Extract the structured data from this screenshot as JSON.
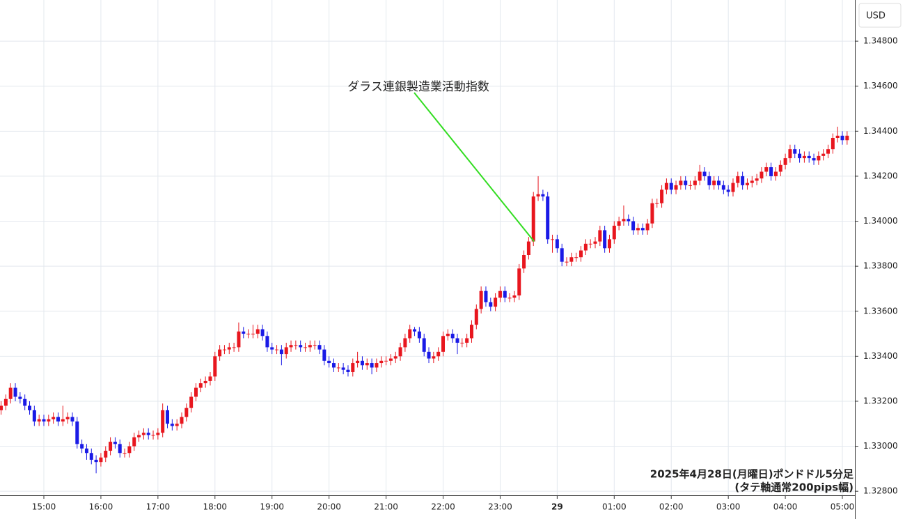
{
  "chart_data": {
    "type": "candlestick",
    "currency": "USD",
    "annotation": "ダラス連銀製造業活動指数",
    "footer": [
      "2025年4月28日(月曜日)ポンドドル5分足",
      "(タテ軸通常200pips幅)"
    ],
    "up_color": "#e8161e",
    "down_color": "#1a1ae6",
    "annotation_color": "#33dd22",
    "grid": true,
    "ylim": [
      1.32782,
      1.34983
    ],
    "yticks": [
      {
        "value": 1.348,
        "label": "1.34800"
      },
      {
        "value": 1.346,
        "label": "1.34600"
      },
      {
        "value": 1.344,
        "label": "1.34400"
      },
      {
        "value": 1.342,
        "label": "1.34200"
      },
      {
        "value": 1.34,
        "label": "1.34000"
      },
      {
        "value": 1.338,
        "label": "1.33800"
      },
      {
        "value": 1.336,
        "label": "1.33600"
      },
      {
        "value": 1.334,
        "label": "1.33400"
      },
      {
        "value": 1.332,
        "label": "1.33200"
      },
      {
        "value": 1.33,
        "label": "1.33000"
      },
      {
        "value": 1.328,
        "label": "1.32800"
      }
    ],
    "categories": [
      null,
      null,
      null,
      null,
      null,
      null,
      null,
      null,
      null,
      "15:00",
      null,
      null,
      null,
      null,
      null,
      null,
      null,
      null,
      null,
      null,
      null,
      "16:00",
      null,
      null,
      null,
      null,
      null,
      null,
      null,
      null,
      null,
      null,
      null,
      "17:00",
      null,
      null,
      null,
      null,
      null,
      null,
      null,
      null,
      null,
      null,
      null,
      "18:00",
      null,
      null,
      null,
      null,
      null,
      null,
      null,
      null,
      null,
      null,
      null,
      "19:00",
      null,
      null,
      null,
      null,
      null,
      null,
      null,
      null,
      null,
      null,
      null,
      "20:00",
      null,
      null,
      null,
      null,
      null,
      null,
      null,
      null,
      null,
      null,
      null,
      "21:00",
      null,
      null,
      null,
      null,
      null,
      null,
      null,
      null,
      null,
      null,
      null,
      "22:00",
      null,
      null,
      null,
      null,
      null,
      null,
      null,
      null,
      null,
      null,
      null,
      "23:00",
      null,
      null,
      null,
      null,
      null,
      null,
      null,
      null,
      null,
      null,
      null,
      "29",
      null,
      null,
      null,
      null,
      null,
      null,
      null,
      null,
      null,
      null,
      null,
      "01:00",
      null,
      null,
      null,
      null,
      null,
      null,
      null,
      null,
      null,
      null,
      null,
      "02:00",
      null,
      null,
      null,
      null,
      null,
      null,
      null,
      null,
      null,
      null,
      null,
      "03:00",
      null,
      null,
      null,
      null,
      null,
      null,
      null,
      null,
      null,
      null,
      null,
      "04:00",
      null,
      null,
      null,
      null,
      null,
      null,
      null,
      null,
      null,
      null,
      null,
      "05:00",
      null
    ],
    "open": [
      1.3316,
      1.3318,
      1.3321,
      1.3326,
      1.3322,
      1.3321,
      1.3318,
      1.3316,
      1.3311,
      1.3312,
      1.3311,
      1.3312,
      1.3313,
      1.3311,
      1.3312,
      1.3313,
      1.3311,
      1.3301,
      1.3299,
      1.3297,
      1.3294,
      1.3293,
      1.3295,
      1.3298,
      1.3302,
      1.3301,
      1.3297,
      1.3297,
      1.33,
      1.3304,
      1.3305,
      1.3306,
      1.3305,
      1.3305,
      1.3306,
      1.3316,
      1.331,
      1.3309,
      1.331,
      1.3313,
      1.3317,
      1.3322,
      1.3326,
      1.3328,
      1.3329,
      1.3331,
      1.334,
      1.3343,
      1.3343,
      1.3344,
      1.3344,
      1.3351,
      1.335,
      1.335,
      1.335,
      1.3352,
      1.3349,
      1.3344,
      1.3343,
      1.3343,
      1.3341,
      1.3344,
      1.3345,
      1.3345,
      1.3344,
      1.3344,
      1.3345,
      1.3345,
      1.3343,
      1.3338,
      1.3337,
      1.3335,
      1.3335,
      1.3334,
      1.3333,
      1.3337,
      1.3338,
      1.3336,
      1.3337,
      1.3335,
      1.3337,
      1.3338,
      1.3338,
      1.3339,
      1.334,
      1.3344,
      1.3348,
      1.3352,
      1.3351,
      1.3348,
      1.3342,
      1.3339,
      1.334,
      1.3342,
      1.3349,
      1.335,
      1.3348,
      1.3346,
      1.3346,
      1.3348,
      1.3354,
      1.3361,
      1.3369,
      1.3364,
      1.3362,
      1.3366,
      1.3369,
      1.3366,
      1.3366,
      1.3367,
      1.3379,
      1.3385,
      1.3391,
      1.3411,
      1.3412,
      1.3411,
      1.3392,
      1.3392,
      1.3388,
      1.3382,
      1.3382,
      1.3384,
      1.3384,
      1.3387,
      1.339,
      1.339,
      1.3391,
      1.3396,
      1.3388,
      1.3392,
      1.3398,
      1.34,
      1.3401,
      1.34,
      1.3396,
      1.3397,
      1.3396,
      1.3399,
      1.3408,
      1.3408,
      1.3414,
      1.3417,
      1.3414,
      1.3416,
      1.3418,
      1.3416,
      1.3416,
      1.3418,
      1.3422,
      1.342,
      1.3416,
      1.3418,
      1.3416,
      1.3414,
      1.3413,
      1.3417,
      1.342,
      1.3416,
      1.3417,
      1.3418,
      1.3419,
      1.3422,
      1.3424,
      1.342,
      1.3422,
      1.3425,
      1.3428,
      1.3432,
      1.343,
      1.3428,
      1.3429,
      1.3428,
      1.3427,
      1.3429,
      1.343,
      1.3432,
      1.3437,
      1.3438,
      1.3436
    ],
    "high": [
      1.332,
      1.3323,
      1.3328,
      1.3328,
      1.3324,
      1.3323,
      1.332,
      1.3318,
      1.3314,
      1.3314,
      1.3314,
      1.3315,
      1.3315,
      1.3318,
      1.3315,
      1.3315,
      1.3313,
      1.3303,
      1.3301,
      1.3299,
      1.3296,
      1.3297,
      1.33,
      1.3304,
      1.3304,
      1.3303,
      1.3299,
      1.3302,
      1.3306,
      1.3307,
      1.3308,
      1.3308,
      1.3307,
      1.3308,
      1.3319,
      1.3318,
      1.3312,
      1.3312,
      1.3315,
      1.3319,
      1.3324,
      1.3328,
      1.333,
      1.3331,
      1.3333,
      1.3342,
      1.3345,
      1.3345,
      1.3346,
      1.3346,
      1.3355,
      1.3353,
      1.3352,
      1.3354,
      1.3354,
      1.3354,
      1.3351,
      1.3346,
      1.3345,
      1.3345,
      1.3346,
      1.3347,
      1.3347,
      1.3347,
      1.3346,
      1.3347,
      1.3347,
      1.3347,
      1.3345,
      1.334,
      1.3339,
      1.3337,
      1.3337,
      1.3336,
      1.3339,
      1.3342,
      1.334,
      1.3339,
      1.3339,
      1.3339,
      1.334,
      1.334,
      1.3341,
      1.3342,
      1.3346,
      1.335,
      1.3354,
      1.3353,
      1.3353,
      1.335,
      1.3344,
      1.3342,
      1.3344,
      1.3351,
      1.3352,
      1.3352,
      1.335,
      1.3348,
      1.335,
      1.3356,
      1.3363,
      1.3371,
      1.3371,
      1.3366,
      1.3368,
      1.3371,
      1.3371,
      1.3368,
      1.3369,
      1.3381,
      1.3387,
      1.3393,
      1.3413,
      1.342,
      1.3414,
      1.3413,
      1.3394,
      1.3394,
      1.339,
      1.3384,
      1.3386,
      1.3386,
      1.3389,
      1.3392,
      1.3392,
      1.3393,
      1.3398,
      1.3398,
      1.3394,
      1.34,
      1.3402,
      1.3407,
      1.3403,
      1.3402,
      1.3399,
      1.3399,
      1.3401,
      1.341,
      1.341,
      1.3416,
      1.3419,
      1.3419,
      1.3418,
      1.342,
      1.342,
      1.3418,
      1.342,
      1.3425,
      1.3424,
      1.3422,
      1.342,
      1.342,
      1.3418,
      1.3416,
      1.3419,
      1.3422,
      1.3422,
      1.3419,
      1.342,
      1.3421,
      1.3424,
      1.3426,
      1.3426,
      1.3424,
      1.3427,
      1.343,
      1.3434,
      1.3434,
      1.3432,
      1.3431,
      1.3431,
      1.343,
      1.3431,
      1.3432,
      1.3434,
      1.3439,
      1.3442,
      1.344,
      1.344
    ],
    "low": [
      1.3314,
      1.3316,
      1.3319,
      1.332,
      1.3319,
      1.3316,
      1.3314,
      1.3309,
      1.3309,
      1.3309,
      1.3309,
      1.331,
      1.3309,
      1.3309,
      1.331,
      1.3309,
      1.3299,
      1.3297,
      1.3294,
      1.3292,
      1.3288,
      1.3291,
      1.3293,
      1.3296,
      1.3299,
      1.3295,
      1.3295,
      1.3295,
      1.3298,
      1.3302,
      1.3303,
      1.3303,
      1.3303,
      1.3303,
      1.3304,
      1.3308,
      1.3307,
      1.3307,
      1.3308,
      1.3311,
      1.3315,
      1.332,
      1.3324,
      1.3326,
      1.3327,
      1.3329,
      1.3338,
      1.3341,
      1.3341,
      1.3342,
      1.3342,
      1.3348,
      1.3348,
      1.3348,
      1.3348,
      1.3347,
      1.3342,
      1.3341,
      1.3341,
      1.3336,
      1.3339,
      1.3342,
      1.3343,
      1.3342,
      1.3342,
      1.3342,
      1.3343,
      1.3341,
      1.3336,
      1.3335,
      1.3333,
      1.3333,
      1.3332,
      1.3331,
      1.3331,
      1.3335,
      1.3334,
      1.3334,
      1.3332,
      1.3333,
      1.3335,
      1.3336,
      1.3336,
      1.3337,
      1.3338,
      1.3342,
      1.3346,
      1.3349,
      1.3346,
      1.334,
      1.3337,
      1.3337,
      1.3338,
      1.334,
      1.3347,
      1.3346,
      1.3341,
      1.3344,
      1.3344,
      1.3346,
      1.3352,
      1.3359,
      1.3362,
      1.336,
      1.336,
      1.3364,
      1.3364,
      1.3364,
      1.3364,
      1.3365,
      1.3377,
      1.3383,
      1.3389,
      1.3409,
      1.3409,
      1.339,
      1.3386,
      1.3386,
      1.338,
      1.338,
      1.338,
      1.3382,
      1.3382,
      1.3385,
      1.3388,
      1.3388,
      1.3389,
      1.3386,
      1.3386,
      1.339,
      1.3396,
      1.3398,
      1.3398,
      1.3394,
      1.3394,
      1.3394,
      1.3394,
      1.3397,
      1.3406,
      1.3406,
      1.3412,
      1.3412,
      1.3412,
      1.3414,
      1.3414,
      1.3414,
      1.3414,
      1.3416,
      1.3418,
      1.3414,
      1.3414,
      1.3414,
      1.3412,
      1.3411,
      1.3411,
      1.3415,
      1.3414,
      1.3414,
      1.3415,
      1.3416,
      1.3417,
      1.342,
      1.3418,
      1.3418,
      1.342,
      1.3423,
      1.3426,
      1.3428,
      1.3426,
      1.3426,
      1.3426,
      1.3425,
      1.3425,
      1.3427,
      1.3428,
      1.343,
      1.3435,
      1.3434,
      1.3434
    ],
    "close": [
      1.3318,
      1.3321,
      1.3326,
      1.3322,
      1.3321,
      1.3318,
      1.3316,
      1.3311,
      1.3312,
      1.3311,
      1.3312,
      1.3313,
      1.3311,
      1.3312,
      1.3313,
      1.3311,
      1.3301,
      1.3299,
      1.3297,
      1.3294,
      1.3293,
      1.3295,
      1.3298,
      1.3302,
      1.3301,
      1.3297,
      1.3297,
      1.33,
      1.3304,
      1.3305,
      1.3306,
      1.3305,
      1.3305,
      1.3306,
      1.3316,
      1.331,
      1.3309,
      1.331,
      1.3313,
      1.3317,
      1.3322,
      1.3326,
      1.3328,
      1.3329,
      1.3331,
      1.334,
      1.3343,
      1.3343,
      1.3344,
      1.3344,
      1.3351,
      1.335,
      1.335,
      1.335,
      1.3352,
      1.3349,
      1.3344,
      1.3343,
      1.3343,
      1.3341,
      1.3344,
      1.3345,
      1.3345,
      1.3344,
      1.3344,
      1.3345,
      1.3345,
      1.3343,
      1.3338,
      1.3337,
      1.3335,
      1.3335,
      1.3334,
      1.3333,
      1.3337,
      1.3338,
      1.3336,
      1.3337,
      1.3335,
      1.3337,
      1.3338,
      1.3338,
      1.3339,
      1.334,
      1.3344,
      1.3348,
      1.3352,
      1.3351,
      1.3348,
      1.3342,
      1.3339,
      1.334,
      1.3342,
      1.3349,
      1.335,
      1.3348,
      1.3346,
      1.3346,
      1.3348,
      1.3354,
      1.3361,
      1.3369,
      1.3364,
      1.3362,
      1.3366,
      1.3369,
      1.3366,
      1.3366,
      1.3367,
      1.3379,
      1.3385,
      1.3391,
      1.3411,
      1.3412,
      1.3411,
      1.3392,
      1.3392,
      1.3388,
      1.3382,
      1.3382,
      1.3384,
      1.3384,
      1.3387,
      1.339,
      1.339,
      1.3391,
      1.3396,
      1.3388,
      1.3392,
      1.3398,
      1.34,
      1.3401,
      1.34,
      1.3396,
      1.3397,
      1.3396,
      1.3399,
      1.3408,
      1.3408,
      1.3414,
      1.3417,
      1.3414,
      1.3416,
      1.3418,
      1.3416,
      1.3416,
      1.3418,
      1.3422,
      1.342,
      1.3416,
      1.3418,
      1.3416,
      1.3414,
      1.3413,
      1.3417,
      1.342,
      1.3416,
      1.3417,
      1.3418,
      1.3419,
      1.3422,
      1.3424,
      1.342,
      1.3422,
      1.3425,
      1.3428,
      1.3432,
      1.343,
      1.3428,
      1.3429,
      1.3428,
      1.3427,
      1.3429,
      1.343,
      1.3432,
      1.3437,
      1.3438,
      1.3436,
      1.3438
    ]
  }
}
